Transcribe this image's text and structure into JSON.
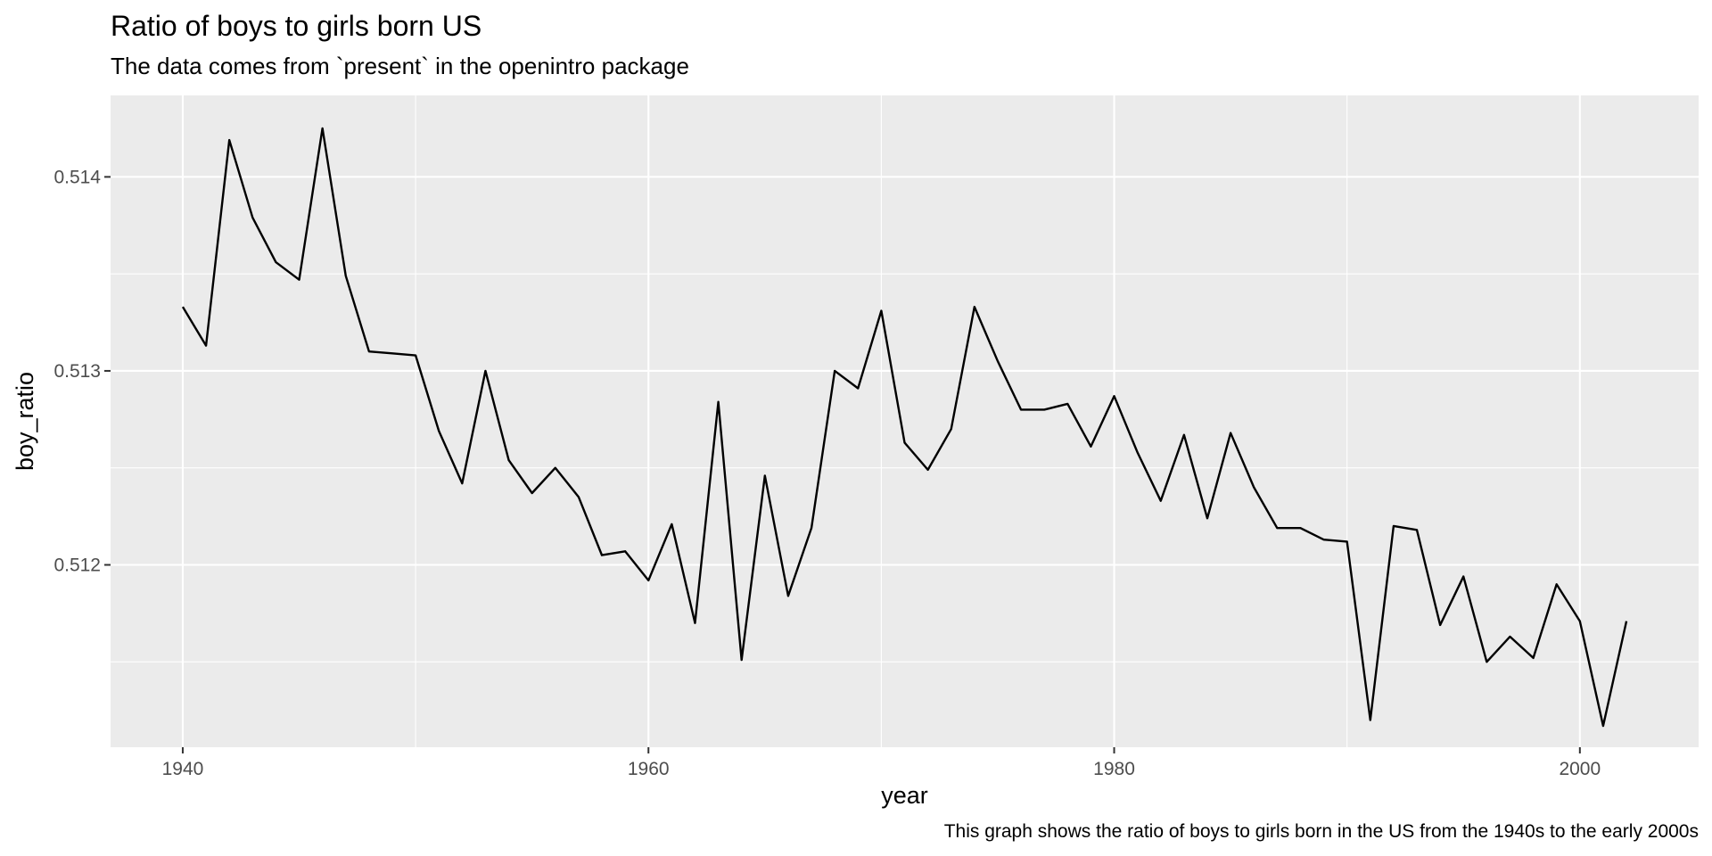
{
  "chart_data": {
    "type": "line",
    "title": "Ratio of boys to girls born US",
    "subtitle": "The data comes from `present` in the openintro package",
    "caption": "This graph shows the ratio of boys to girls born in the US from the 1940s to the early 2000s",
    "xlabel": "year",
    "ylabel": "boy_ratio",
    "xlim": [
      1936.9,
      2005.1
    ],
    "ylim": [
      0.51106,
      0.51442
    ],
    "x_ticks": [
      1940,
      1960,
      1980,
      2000
    ],
    "x_tick_labels": [
      "1940",
      "1960",
      "1980",
      "2000"
    ],
    "x_minor_ticks": [
      1950,
      1970,
      1990
    ],
    "y_ticks": [
      0.512,
      0.513,
      0.514
    ],
    "y_tick_labels": [
      "0.512",
      "0.513",
      "0.514"
    ],
    "y_minor_ticks": [
      0.5115,
      0.5125,
      0.5135
    ],
    "grid": true,
    "panel_background": "#ebebeb",
    "line_color": "#000000",
    "series": [
      {
        "x": [
          1940,
          1941,
          1942,
          1943,
          1944,
          1945,
          1946,
          1947,
          1948,
          1949,
          1950,
          1951,
          1952,
          1953,
          1954,
          1955,
          1956,
          1957,
          1958,
          1959,
          1960,
          1961,
          1962,
          1963,
          1964,
          1965,
          1966,
          1967,
          1968,
          1969,
          1970,
          1971,
          1972,
          1973,
          1974,
          1975,
          1976,
          1977,
          1978,
          1979,
          1980,
          1981,
          1982,
          1983,
          1984,
          1985,
          1986,
          1987,
          1988,
          1989,
          1990,
          1991,
          1992,
          1993,
          1994,
          1995,
          1996,
          1997,
          1998,
          1999,
          2000,
          2001,
          2002
        ],
        "values": [
          0.51333,
          0.51313,
          0.51419,
          0.51379,
          0.51356,
          0.51347,
          0.51425,
          0.51349,
          0.5131,
          0.51309,
          0.51308,
          0.51269,
          0.51242,
          0.513,
          0.51254,
          0.51237,
          0.5125,
          0.51235,
          0.51205,
          0.51207,
          0.51192,
          0.51221,
          0.5117,
          0.51284,
          0.51151,
          0.51246,
          0.51184,
          0.51219,
          0.513,
          0.51291,
          0.51331,
          0.51263,
          0.51249,
          0.5127,
          0.51333,
          0.51305,
          0.5128,
          0.5128,
          0.51283,
          0.51261,
          0.51287,
          0.51258,
          0.51233,
          0.51267,
          0.51224,
          0.51268,
          0.5124,
          0.51219,
          0.51219,
          0.51213,
          0.51212,
          0.5112,
          0.5122,
          0.51218,
          0.51169,
          0.51194,
          0.5115,
          0.51163,
          0.51152,
          0.5119,
          0.51171,
          0.51117,
          0.51171
        ]
      }
    ]
  }
}
